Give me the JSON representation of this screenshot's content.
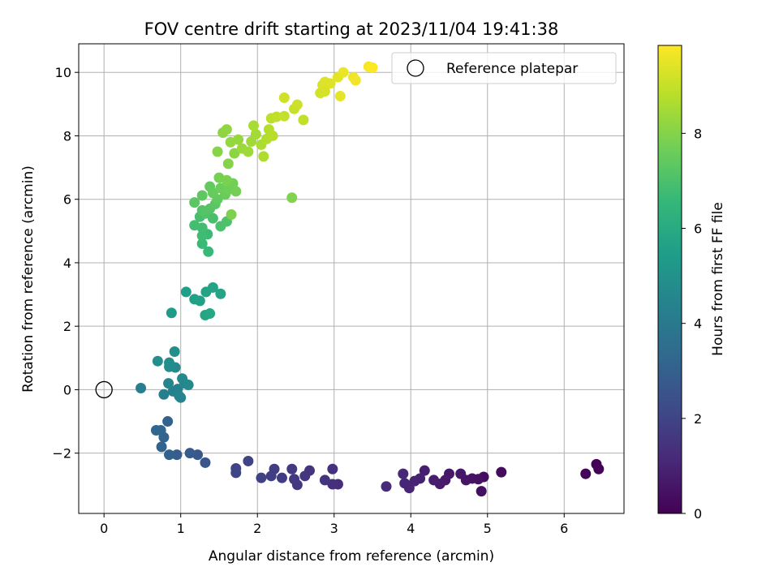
{
  "chart_data": {
    "type": "scatter",
    "title": "FOV centre drift starting at 2023/11/04 19:41:38",
    "xlabel": "Angular distance from reference (arcmin)",
    "ylabel": "Rotation from reference (arcmin)",
    "xlim": [
      -0.33,
      6.78
    ],
    "ylim": [
      -3.9,
      10.9
    ],
    "xticks": [
      0,
      1,
      2,
      3,
      4,
      5,
      6
    ],
    "yticks": [
      -2,
      0,
      2,
      4,
      6,
      8,
      10
    ],
    "xtick_labels": [
      "0",
      "1",
      "2",
      "3",
      "4",
      "5",
      "6"
    ],
    "ytick_labels": [
      "−2",
      "0",
      "2",
      "4",
      "6",
      "8",
      "10"
    ],
    "grid": true,
    "legend": {
      "position": "top-right",
      "entries": [
        {
          "label": "Reference platepar",
          "marker": "open-circle",
          "x": 0,
          "y": 0
        }
      ]
    },
    "colorbar": {
      "label": "Hours from first FF file",
      "colormap": "viridis",
      "range": [
        0,
        9.85
      ],
      "ticks": [
        0,
        2,
        4,
        6,
        8
      ],
      "tick_labels": [
        "0",
        "2",
        "4",
        "6",
        "8"
      ]
    },
    "points": [
      [
        6.42,
        -2.35,
        0.05
      ],
      [
        6.45,
        -2.5,
        0.06
      ],
      [
        6.28,
        -2.65,
        0.08
      ],
      [
        5.18,
        -2.6,
        0.3
      ],
      [
        4.95,
        -2.75,
        0.35
      ],
      [
        4.92,
        -3.2,
        0.4
      ],
      [
        4.88,
        -2.82,
        0.45
      ],
      [
        4.8,
        -2.8,
        0.5
      ],
      [
        4.72,
        -2.85,
        0.55
      ],
      [
        4.65,
        -2.65,
        0.6
      ],
      [
        4.5,
        -2.65,
        0.65
      ],
      [
        4.45,
        -2.85,
        0.7
      ],
      [
        4.38,
        -2.97,
        0.75
      ],
      [
        4.3,
        -2.85,
        0.8
      ],
      [
        4.18,
        -2.55,
        0.85
      ],
      [
        4.12,
        -2.8,
        0.9
      ],
      [
        4.05,
        -2.88,
        0.95
      ],
      [
        3.98,
        -3.1,
        1.0
      ],
      [
        3.92,
        -2.95,
        1.05
      ],
      [
        3.9,
        -2.65,
        1.1
      ],
      [
        3.68,
        -3.05,
        1.15
      ],
      [
        3.05,
        -2.98,
        1.3
      ],
      [
        2.98,
        -2.98,
        1.35
      ],
      [
        2.98,
        -2.5,
        1.4
      ],
      [
        2.88,
        -2.85,
        1.45
      ],
      [
        2.68,
        -2.55,
        1.5
      ],
      [
        2.62,
        -2.72,
        1.55
      ],
      [
        2.52,
        -3.0,
        1.6
      ],
      [
        2.48,
        -2.82,
        1.65
      ],
      [
        2.45,
        -2.5,
        1.7
      ],
      [
        2.32,
        -2.78,
        1.75
      ],
      [
        2.22,
        -2.5,
        1.8
      ],
      [
        2.18,
        -2.72,
        1.85
      ],
      [
        2.05,
        -2.78,
        1.9
      ],
      [
        1.88,
        -2.25,
        1.95
      ],
      [
        1.72,
        -2.48,
        2.0
      ],
      [
        1.72,
        -2.62,
        2.05
      ],
      [
        1.32,
        -2.3,
        2.6
      ],
      [
        1.22,
        -2.05,
        2.7
      ],
      [
        1.12,
        -2.0,
        2.8
      ],
      [
        0.95,
        -2.05,
        2.9
      ],
      [
        0.85,
        -2.05,
        3.0
      ],
      [
        0.83,
        -1.0,
        3.05
      ],
      [
        0.75,
        -1.8,
        3.1
      ],
      [
        0.78,
        -1.5,
        3.15
      ],
      [
        0.68,
        -1.28,
        3.2
      ],
      [
        0.74,
        -1.28,
        3.25
      ],
      [
        0.48,
        0.05,
        4.2
      ],
      [
        0.78,
        -0.15,
        4.25
      ],
      [
        0.9,
        -0.05,
        4.3
      ],
      [
        0.96,
        0.02,
        4.35
      ],
      [
        0.98,
        -0.2,
        4.4
      ],
      [
        1.0,
        -0.25,
        4.45
      ],
      [
        0.84,
        0.2,
        4.5
      ],
      [
        1.05,
        0.2,
        4.55
      ],
      [
        1.1,
        0.15,
        4.6
      ],
      [
        1.02,
        0.35,
        4.65
      ],
      [
        0.93,
        0.7,
        4.7
      ],
      [
        0.85,
        0.72,
        4.75
      ],
      [
        0.85,
        0.85,
        4.8
      ],
      [
        0.7,
        0.9,
        4.85
      ],
      [
        0.92,
        1.2,
        4.9
      ],
      [
        0.88,
        2.42,
        5.4
      ],
      [
        1.07,
        3.08,
        5.5
      ],
      [
        1.18,
        2.85,
        5.55
      ],
      [
        1.25,
        2.8,
        5.6
      ],
      [
        1.33,
        3.08,
        5.65
      ],
      [
        1.42,
        3.22,
        5.7
      ],
      [
        1.52,
        3.02,
        5.75
      ],
      [
        1.32,
        2.35,
        5.8
      ],
      [
        1.38,
        2.4,
        5.85
      ],
      [
        1.36,
        4.35,
        6.6
      ],
      [
        1.28,
        4.6,
        6.65
      ],
      [
        1.35,
        4.9,
        6.7
      ],
      [
        1.28,
        4.85,
        6.75
      ],
      [
        1.28,
        5.1,
        6.8
      ],
      [
        1.18,
        5.18,
        6.85
      ],
      [
        1.25,
        5.45,
        6.9
      ],
      [
        1.42,
        5.4,
        6.95
      ],
      [
        1.52,
        5.15,
        7.0
      ],
      [
        1.6,
        5.3,
        7.05
      ],
      [
        1.32,
        5.55,
        7.1
      ],
      [
        1.28,
        5.65,
        7.15
      ],
      [
        1.38,
        5.7,
        7.2
      ],
      [
        1.45,
        5.85,
        7.25
      ],
      [
        1.18,
        5.9,
        7.3
      ],
      [
        1.28,
        6.12,
        7.35
      ],
      [
        1.48,
        6.0,
        7.4
      ],
      [
        1.38,
        6.4,
        7.45
      ],
      [
        1.42,
        6.2,
        7.5
      ],
      [
        1.58,
        6.15,
        7.55
      ],
      [
        1.52,
        6.35,
        7.6
      ],
      [
        1.62,
        6.3,
        7.65
      ],
      [
        1.68,
        6.5,
        7.7
      ],
      [
        1.72,
        6.25,
        7.75
      ],
      [
        1.5,
        6.68,
        7.8
      ],
      [
        1.6,
        6.6,
        7.85
      ],
      [
        1.66,
        5.52,
        7.9
      ],
      [
        2.45,
        6.05,
        7.95
      ],
      [
        1.62,
        7.12,
        8.0
      ],
      [
        1.48,
        7.5,
        8.05
      ],
      [
        1.7,
        7.45,
        8.1
      ],
      [
        1.55,
        8.1,
        8.15
      ],
      [
        1.6,
        8.2,
        8.2
      ],
      [
        1.65,
        7.8,
        8.25
      ],
      [
        1.75,
        7.88,
        8.3
      ],
      [
        1.8,
        7.6,
        8.35
      ],
      [
        1.88,
        7.5,
        8.4
      ],
      [
        1.92,
        7.82,
        8.45
      ],
      [
        1.98,
        8.05,
        8.5
      ],
      [
        1.95,
        8.32,
        8.55
      ],
      [
        2.05,
        7.72,
        8.6
      ],
      [
        2.08,
        7.35,
        8.65
      ],
      [
        2.12,
        7.9,
        8.7
      ],
      [
        2.15,
        8.2,
        8.75
      ],
      [
        2.2,
        8.0,
        8.8
      ],
      [
        2.18,
        8.55,
        8.85
      ],
      [
        2.25,
        8.6,
        8.9
      ],
      [
        2.6,
        8.5,
        8.95
      ],
      [
        2.35,
        8.62,
        9.0
      ],
      [
        2.48,
        8.85,
        9.05
      ],
      [
        2.52,
        8.98,
        9.1
      ],
      [
        2.35,
        9.2,
        9.15
      ],
      [
        2.82,
        9.35,
        9.2
      ],
      [
        2.88,
        9.4,
        9.25
      ],
      [
        2.85,
        9.6,
        9.3
      ],
      [
        2.88,
        9.7,
        9.35
      ],
      [
        2.95,
        9.65,
        9.4
      ],
      [
        3.05,
        9.85,
        9.45
      ],
      [
        3.08,
        9.25,
        9.5
      ],
      [
        3.12,
        10.0,
        9.55
      ],
      [
        3.25,
        9.85,
        9.6
      ],
      [
        3.28,
        9.75,
        9.65
      ],
      [
        3.45,
        10.18,
        9.75
      ],
      [
        3.5,
        10.15,
        9.85
      ]
    ]
  }
}
